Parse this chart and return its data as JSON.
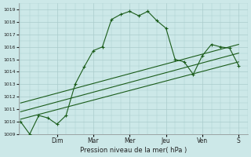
{
  "xlabel": "Pression niveau de la mer( hPa )",
  "background_color": "#cce8e8",
  "grid_color": "#aacccc",
  "line_color": "#1a5c1a",
  "ylim": [
    1009,
    1019.5
  ],
  "yticks": [
    1009,
    1010,
    1011,
    1012,
    1013,
    1014,
    1015,
    1016,
    1017,
    1018,
    1019
  ],
  "day_labels": [
    "Dim",
    "Mar",
    "Mer",
    "Jeu",
    "Ven",
    "S"
  ],
  "day_positions": [
    2.0,
    4.0,
    6.0,
    8.0,
    10.0,
    12.0
  ],
  "xlim": [
    -0.1,
    12.5
  ],
  "series1_x": [
    0,
    0.5,
    1.0,
    1.5,
    2.0,
    2.5,
    3.0,
    3.5,
    4.0,
    4.5,
    5.0,
    5.5,
    6.0,
    6.5,
    7.0,
    7.5,
    8.0,
    8.5,
    9.0,
    9.5,
    10.0,
    10.5,
    11.0,
    11.5,
    12.0
  ],
  "series1_y": [
    1010.0,
    1009.0,
    1010.5,
    1010.3,
    1009.8,
    1010.5,
    1013.0,
    1014.4,
    1015.7,
    1016.0,
    1018.2,
    1018.6,
    1018.85,
    1018.5,
    1018.85,
    1018.1,
    1017.5,
    1015.0,
    1014.8,
    1013.8,
    1015.3,
    1016.2,
    1016.0,
    1015.9,
    1014.5
  ],
  "series2_x": [
    0,
    12.0
  ],
  "series2_y": [
    1010.2,
    1014.8
  ],
  "series3_x": [
    0,
    12.0
  ],
  "series3_y": [
    1010.8,
    1015.5
  ],
  "series4_x": [
    0,
    12.0
  ],
  "series4_y": [
    1011.5,
    1016.2
  ],
  "ylabel_fontsize": 5,
  "xlabel_fontsize": 6,
  "tick_labelsize": 4.5,
  "xtick_labelsize": 5.5
}
